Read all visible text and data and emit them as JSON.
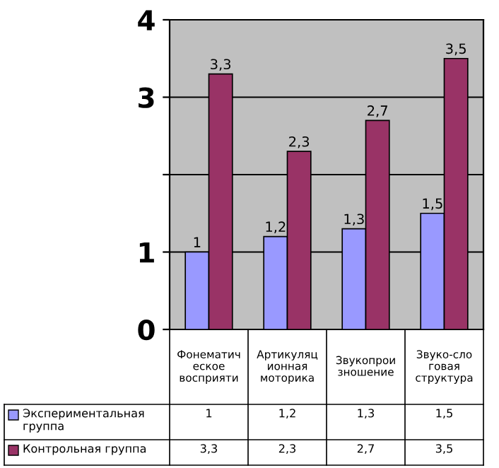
{
  "chart_data": {
    "type": "bar",
    "categories": [
      "Фонематическое восприяти",
      "Артикуляционная моторика",
      "Звукопроизношение",
      "Звуко-слоговая структура"
    ],
    "series": [
      {
        "name": "Экспериментальная группа",
        "color": "#9999ff",
        "values": [
          1,
          1.2,
          1.3,
          1.5
        ],
        "value_labels": [
          "1",
          "1,2",
          "1,3",
          "1,5"
        ]
      },
      {
        "name": "Контрольная группа",
        "color": "#993366",
        "values": [
          3.3,
          2.3,
          2.7,
          3.5
        ],
        "value_labels": [
          "3,3",
          "2,3",
          "2,7",
          "3,5"
        ]
      }
    ],
    "ylim": [
      0,
      4
    ],
    "yticks": [
      0,
      1,
      {
        "value": 2,
        "label": null
      },
      3,
      4
    ],
    "grid": "y",
    "legend": "bottom left"
  }
}
